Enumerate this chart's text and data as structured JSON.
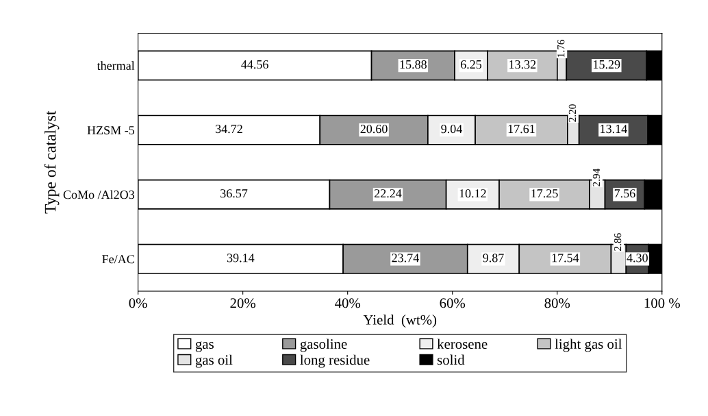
{
  "chart_data": {
    "type": "bar",
    "orientation": "horizontal",
    "stacked": true,
    "categories": [
      "thermal",
      "HZSM -5",
      "CoMo /Al2O3",
      "Fe/AC"
    ],
    "xlabel": "Yield  (wt%)",
    "ylabel": "Type of catalyst",
    "xlim": [
      0,
      100
    ],
    "xticks": [
      {
        "value": 0,
        "label": "0%"
      },
      {
        "value": 20,
        "label": "20%"
      },
      {
        "value": 40,
        "label": "40%"
      },
      {
        "value": 60,
        "label": "60%"
      },
      {
        "value": 80,
        "label": "80%"
      },
      {
        "value": 100,
        "label": "100 %"
      }
    ],
    "legend": "bottom",
    "grid": false,
    "series": [
      {
        "name": "gas",
        "color": "#ffffff",
        "values": [
          44.56,
          34.72,
          36.57,
          39.14
        ],
        "value_labels": [
          "44.56",
          "34.72",
          "36.57",
          "39.14"
        ]
      },
      {
        "name": "gasoline",
        "color": "#9a9a9a",
        "values": [
          15.88,
          20.6,
          22.24,
          23.74
        ],
        "value_labels": [
          "15.88",
          "20.60",
          "22.24",
          "23.74"
        ]
      },
      {
        "name": "kerosene",
        "color": "#eeeeee",
        "values": [
          6.25,
          9.04,
          10.12,
          9.87
        ],
        "value_labels": [
          "6.25",
          "9.04",
          "10.12",
          "9.87"
        ]
      },
      {
        "name": "light gas oil",
        "color": "#c4c4c4",
        "values": [
          13.32,
          17.61,
          17.25,
          17.54
        ],
        "value_labels": [
          "13.32",
          "17.61",
          "17.25",
          "17.54"
        ]
      },
      {
        "name": "gas oil",
        "color": "#e4e4e4",
        "values": [
          1.76,
          2.2,
          2.94,
          2.86
        ],
        "value_labels": [
          "1.76",
          "2.20",
          "2.94",
          "2.86"
        ]
      },
      {
        "name": "long residue",
        "color": "#4a4a4a",
        "values": [
          15.29,
          13.14,
          7.56,
          4.3
        ],
        "value_labels": [
          "15.29",
          "13.14",
          "7.56",
          "4.30"
        ]
      },
      {
        "name": "solid",
        "color": "#000000",
        "values": [
          2.94,
          2.69,
          3.32,
          2.55
        ],
        "value_labels": [
          null,
          null,
          null,
          null
        ]
      }
    ]
  }
}
